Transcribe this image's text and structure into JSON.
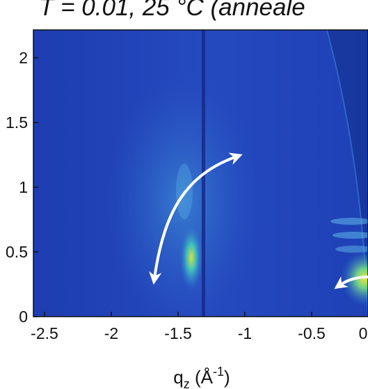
{
  "chart_data": {
    "type": "heatmap",
    "title": "T = 0.01, 25 °C (anneale",
    "xlabel": "q",
    "xlabel_sub": "z",
    "xlabel_unit_open": " (Å",
    "xlabel_unit_exp": "-1",
    "xlabel_unit_close": ")",
    "ylabel": "",
    "xlim": [
      -2.5,
      0.0
    ],
    "ylim": [
      0,
      2.2
    ],
    "x_ticks": [
      {
        "value": -2.5,
        "label": "-2.5"
      },
      {
        "value": -2.0,
        "label": "-2"
      },
      {
        "value": -1.5,
        "label": "-1.5"
      },
      {
        "value": -1.0,
        "label": "-1"
      },
      {
        "value": -0.5,
        "label": "-0.5"
      },
      {
        "value": 0.0,
        "label": "0"
      }
    ],
    "y_ticks": [
      {
        "value": 0.0,
        "label": "0"
      },
      {
        "value": 0.5,
        "label": "0.5"
      },
      {
        "value": 1.0,
        "label": "1"
      },
      {
        "value": 1.5,
        "label": "1.5"
      },
      {
        "value": 2.0,
        "label": "2"
      }
    ],
    "colormap": "parula",
    "colors": {
      "background": "#1c3fb4",
      "dark_band": "#142a86",
      "glow": "#4aa6e0",
      "hotspot": "#e6e43a",
      "arrow": "#ffffff"
    },
    "features": [
      {
        "kind": "vertical_line",
        "x": -1.2
      },
      {
        "kind": "diffuse_arc_peak",
        "x": -1.35,
        "y": 0.45
      },
      {
        "kind": "bright_spot",
        "x": -0.02,
        "y": 0.28
      }
    ],
    "annotations": [
      {
        "kind": "double_arrow",
        "from": [
          -1.6,
          0.25
        ],
        "to": [
          -1.05,
          1.22
        ]
      },
      {
        "kind": "arrow_partial",
        "at": [
          -0.1,
          0.22
        ]
      }
    ]
  }
}
